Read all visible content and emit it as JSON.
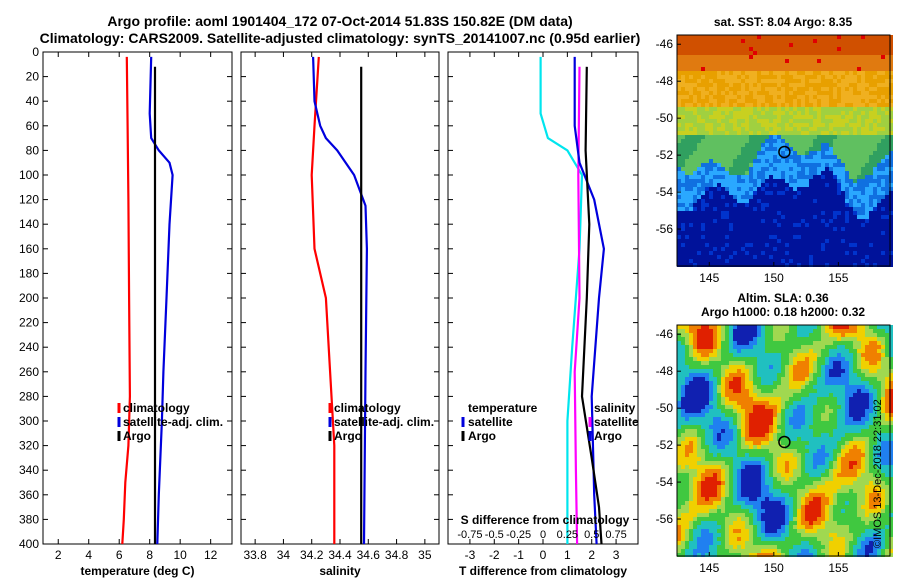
{
  "header": {
    "line1": "Argo profile: aoml 1901404_172 07-Oct-2014 51.83S 150.82E (DM data)",
    "line2": "Climatology: CARS2009. Satellite-adjusted climatology: synTS_20141007.nc (0.95d earlier)"
  },
  "colors": {
    "red": "#ff0000",
    "blue": "#0000dd",
    "black": "#000000",
    "cyan": "#00e5ee",
    "magenta": "#ff00ff"
  },
  "chart_data": [
    {
      "type": "line",
      "name": "temperature",
      "xlabel": "temperature (deg C)",
      "xlim": [
        1,
        13.4
      ],
      "xticks": [
        2,
        4,
        6,
        8,
        10,
        12
      ],
      "xtick_labels": [
        "2",
        "4",
        "6",
        "8",
        "10",
        "12"
      ],
      "ylim": [
        0,
        400
      ],
      "yticks": [
        0,
        20,
        40,
        60,
        80,
        100,
        120,
        140,
        160,
        180,
        200,
        220,
        240,
        260,
        280,
        300,
        320,
        340,
        360,
        380,
        400
      ],
      "ytick_labels": [
        "0",
        "20",
        "40",
        "60",
        "80",
        "100",
        "120",
        "140",
        "160",
        "180",
        "200",
        "220",
        "240",
        "260",
        "280",
        "300",
        "320",
        "340",
        "360",
        "380",
        "400"
      ],
      "series": [
        {
          "name": "climatology",
          "color": "red",
          "points": [
            [
              6.5,
              4
            ],
            [
              6.55,
              60
            ],
            [
              6.6,
              120
            ],
            [
              6.65,
              200
            ],
            [
              6.7,
              280
            ],
            [
              6.6,
              320
            ],
            [
              6.4,
              350
            ],
            [
              6.3,
              380
            ],
            [
              6.2,
              400
            ]
          ]
        },
        {
          "name": "satellite-adj. clim.",
          "color": "blue",
          "points": [
            [
              8.1,
              4
            ],
            [
              8.0,
              50
            ],
            [
              8.1,
              70
            ],
            [
              8.6,
              80
            ],
            [
              9.3,
              90
            ],
            [
              9.5,
              100
            ],
            [
              9.3,
              140
            ],
            [
              9.1,
              200
            ],
            [
              8.9,
              260
            ],
            [
              8.8,
              300
            ],
            [
              8.6,
              360
            ],
            [
              8.5,
              400
            ]
          ]
        },
        {
          "name": "Argo",
          "color": "black",
          "points": [
            [
              8.35,
              12
            ],
            [
              8.35,
              80
            ],
            [
              8.35,
              400
            ]
          ]
        }
      ],
      "legend": [
        "climatology",
        "satellite-adj. clim.",
        "Argo"
      ],
      "legend_colors": [
        "red",
        "blue",
        "black"
      ],
      "legend_loc": "lower-right"
    },
    {
      "type": "line",
      "name": "salinity",
      "xlabel": "salinity",
      "xlim": [
        33.7,
        35.1
      ],
      "xticks": [
        33.8,
        34,
        34.2,
        34.4,
        34.6,
        34.8,
        35
      ],
      "xtick_labels": [
        "33.8",
        "34",
        "34.2",
        "34.4",
        "34.6",
        "34.8",
        "35"
      ],
      "ylim": [
        0,
        400
      ],
      "series": [
        {
          "name": "climatology",
          "color": "red",
          "points": [
            [
              34.25,
              4
            ],
            [
              34.22,
              60
            ],
            [
              34.2,
              100
            ],
            [
              34.22,
              160
            ],
            [
              34.3,
              200
            ],
            [
              34.33,
              260
            ],
            [
              34.36,
              320
            ],
            [
              34.36,
              400
            ]
          ]
        },
        {
          "name": "satellite-adj. clim.",
          "color": "blue",
          "points": [
            [
              34.21,
              4
            ],
            [
              34.22,
              40
            ],
            [
              34.26,
              60
            ],
            [
              34.3,
              70
            ],
            [
              34.38,
              80
            ],
            [
              34.5,
              100
            ],
            [
              34.58,
              125
            ],
            [
              34.59,
              160
            ],
            [
              34.58,
              260
            ],
            [
              34.57,
              400
            ]
          ]
        },
        {
          "name": "Argo",
          "color": "black",
          "points": [
            [
              34.55,
              12
            ],
            [
              34.55,
              80
            ],
            [
              34.55,
              400
            ]
          ]
        }
      ],
      "legend": [
        "climatology",
        "satellite-adj. clim.",
        "Argo"
      ],
      "legend_colors": [
        "red",
        "blue",
        "black"
      ],
      "legend_loc": "lower-right"
    },
    {
      "type": "line",
      "name": "difference",
      "xlabel": "T difference from climatology",
      "xlim": [
        -3.9,
        3.9
      ],
      "xticks": [
        -3,
        -2,
        -1,
        0,
        1,
        2,
        3
      ],
      "xtick_labels": [
        "-3",
        "-2",
        "-1",
        "0",
        "1",
        "2",
        "3"
      ],
      "top_axis_label": "S difference from climatology",
      "top_ticks": [
        -3,
        -2,
        -1,
        0,
        1,
        2,
        3
      ],
      "top_tick_labels": [
        "-0.75",
        "-0.5",
        "-0.25",
        "0",
        "0.25",
        "0.5",
        "0.75"
      ],
      "ylim": [
        0,
        400
      ],
      "series": [
        {
          "name": "T satellite",
          "color": "cyan",
          "points": [
            [
              -0.1,
              4
            ],
            [
              -0.1,
              50
            ],
            [
              0.2,
              70
            ],
            [
              1.0,
              80
            ],
            [
              1.6,
              100
            ],
            [
              1.5,
              160
            ],
            [
              1.2,
              240
            ],
            [
              1.0,
              300
            ],
            [
              1.0,
              400
            ]
          ]
        },
        {
          "name": "T Argo",
          "color": "magenta",
          "points": [
            [
              1.5,
              12
            ],
            [
              1.45,
              100
            ],
            [
              1.5,
              200
            ],
            [
              1.3,
              260
            ],
            [
              1.35,
              340
            ],
            [
              1.4,
              400
            ]
          ]
        },
        {
          "name": "S satellite",
          "color": "blue",
          "points": [
            [
              1.3,
              4
            ],
            [
              1.3,
              60
            ],
            [
              1.5,
              90
            ],
            [
              2.1,
              120
            ],
            [
              2.5,
              160
            ],
            [
              2.3,
              200
            ],
            [
              2.0,
              280
            ],
            [
              2.1,
              360
            ],
            [
              2.2,
              400
            ]
          ]
        },
        {
          "name": "S Argo",
          "color": "black",
          "points": [
            [
              1.8,
              12
            ],
            [
              1.75,
              80
            ],
            [
              1.9,
              140
            ],
            [
              1.8,
              200
            ],
            [
              1.6,
              280
            ],
            [
              2.0,
              330
            ],
            [
              2.3,
              370
            ],
            [
              2.4,
              400
            ]
          ]
        }
      ],
      "legend_left_title": "temperature",
      "legend_left": [
        "satellite",
        "Argo"
      ],
      "legend_left_colors": [
        "blue",
        "black"
      ],
      "legend_right_title": "salinity",
      "legend_right": [
        "satellite",
        "Argo"
      ],
      "legend_right_colors": [
        "magenta",
        "blue"
      ]
    },
    {
      "type": "heatmap",
      "name": "sst-map",
      "title": "sat. SST: 8.04 Argo: 8.35",
      "xlim": [
        142.5,
        159
      ],
      "ylim": [
        -58,
        -45.5
      ],
      "xticks": [
        145,
        150,
        155
      ],
      "xtick_labels": [
        "145",
        "150",
        "155"
      ],
      "yticks": [
        -46,
        -48,
        -50,
        -52,
        -54,
        -56
      ],
      "ytick_labels": [
        "-46",
        "-48",
        "-50",
        "-52",
        "-54",
        "-56"
      ],
      "marker": [
        150.82,
        -51.83
      ]
    },
    {
      "type": "heatmap",
      "name": "sla-map",
      "title": "Altim. SLA: 0.36",
      "subtitle": "Argo h1000: 0.18 h2000: 0.32",
      "xlim": [
        142.5,
        159
      ],
      "ylim": [
        -58,
        -45.5
      ],
      "xticks": [
        145,
        150,
        155
      ],
      "xtick_labels": [
        "145",
        "150",
        "155"
      ],
      "yticks": [
        -46,
        -48,
        -50,
        -52,
        -54,
        -56
      ],
      "ytick_labels": [
        "-46",
        "-48",
        "-50",
        "-52",
        "-54",
        "-56"
      ],
      "marker": [
        150.82,
        -51.83
      ]
    }
  ],
  "footer": {
    "stamp": "©IMOS 13-Dec-2018 22:31:02"
  }
}
